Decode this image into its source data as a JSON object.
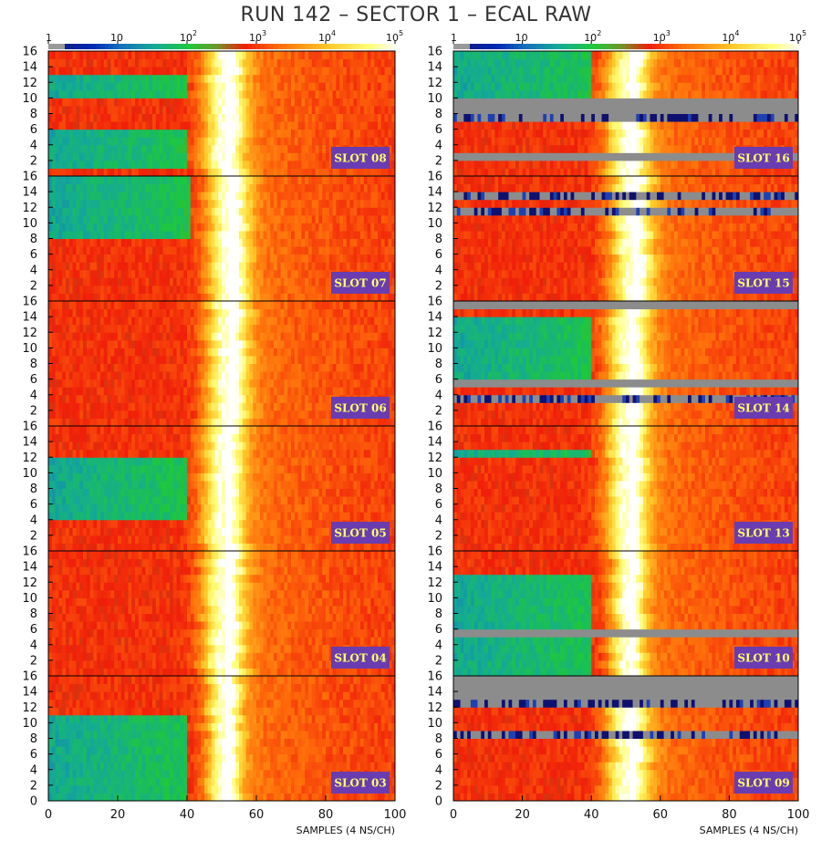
{
  "title": "RUN 142 – SECTOR 1 – ECAL RAW",
  "colorbar": {
    "tick_labels": [
      {
        "base": "1",
        "exp": ""
      },
      {
        "base": "10",
        "exp": ""
      },
      {
        "base": "10",
        "exp": "2"
      },
      {
        "base": "10",
        "exp": "3"
      },
      {
        "base": "10",
        "exp": "4"
      },
      {
        "base": "10",
        "exp": "5"
      }
    ],
    "scale": "log",
    "range": [
      1,
      100000
    ]
  },
  "chart_data": {
    "type": "heatmap",
    "xlabel": "SAMPLES (4 NS/CH)",
    "xlim": [
      0,
      100
    ],
    "x_ticks": [
      "0",
      "20",
      "40",
      "60",
      "80",
      "100"
    ],
    "ylim": [
      0,
      16
    ],
    "y_ticks": [
      "0",
      "2",
      "4",
      "6",
      "8",
      "10",
      "12",
      "14",
      "16"
    ],
    "peak_sample_range": [
      42,
      58
    ],
    "columns": [
      {
        "column": "left",
        "panels": [
          {
            "slot": "SLOT 08",
            "peak_center": 50,
            "peak_width": 6,
            "low_rows": [
              1,
              2,
              3,
              4,
              5,
              10,
              11,
              12
            ],
            "dead_rows": [],
            "noisy_rows": []
          },
          {
            "slot": "SLOT 07",
            "peak_center": 51,
            "peak_width": 6,
            "low_rows": [
              8,
              9,
              10,
              11,
              12,
              13,
              14,
              15
            ],
            "dead_rows": [],
            "noisy_rows": []
          },
          {
            "slot": "SLOT 06",
            "peak_center": 51,
            "peak_width": 6,
            "low_rows": [],
            "dead_rows": [],
            "noisy_rows": []
          },
          {
            "slot": "SLOT 05",
            "peak_center": 50,
            "peak_width": 6,
            "low_rows": [
              4,
              5,
              6,
              7,
              8,
              9,
              10,
              11
            ],
            "dead_rows": [],
            "noisy_rows": []
          },
          {
            "slot": "SLOT 04",
            "peak_center": 50,
            "peak_width": 6,
            "low_rows": [],
            "dead_rows": [],
            "noisy_rows": []
          },
          {
            "slot": "SLOT 03",
            "peak_center": 50,
            "peak_width": 5,
            "low_rows": [
              0,
              1,
              2,
              3,
              4,
              5,
              6,
              7,
              8,
              9,
              10
            ],
            "dead_rows": [],
            "noisy_rows": []
          }
        ]
      },
      {
        "column": "right",
        "panels": [
          {
            "slot": "SLOT 16",
            "peak_center": 50,
            "peak_width": 6,
            "low_rows": [
              10,
              11,
              12,
              13,
              14,
              15
            ],
            "dead_rows": [
              2,
              8,
              9
            ],
            "noisy_rows": [
              7
            ]
          },
          {
            "slot": "SLOT 15",
            "peak_center": 51,
            "peak_width": 6,
            "low_rows": [],
            "dead_rows": [],
            "noisy_rows": [
              11,
              13
            ]
          },
          {
            "slot": "SLOT 14",
            "peak_center": 50,
            "peak_width": 6,
            "low_rows": [
              6,
              7,
              8,
              9,
              10,
              11,
              12,
              13
            ],
            "dead_rows": [
              5,
              15
            ],
            "noisy_rows": [
              3
            ]
          },
          {
            "slot": "SLOT 13",
            "peak_center": 50,
            "peak_width": 6,
            "low_rows": [
              12
            ],
            "dead_rows": [],
            "noisy_rows": []
          },
          {
            "slot": "SLOT 10",
            "peak_center": 50,
            "peak_width": 5,
            "low_rows": [
              0,
              1,
              2,
              3,
              4,
              6,
              7,
              8,
              9,
              10,
              11,
              12
            ],
            "dead_rows": [
              5
            ],
            "noisy_rows": []
          },
          {
            "slot": "SLOT 09",
            "peak_center": 50,
            "peak_width": 6,
            "low_rows": [],
            "dead_rows": [
              13,
              14,
              15
            ],
            "noisy_rows": [
              8,
              12
            ]
          }
        ]
      }
    ]
  }
}
